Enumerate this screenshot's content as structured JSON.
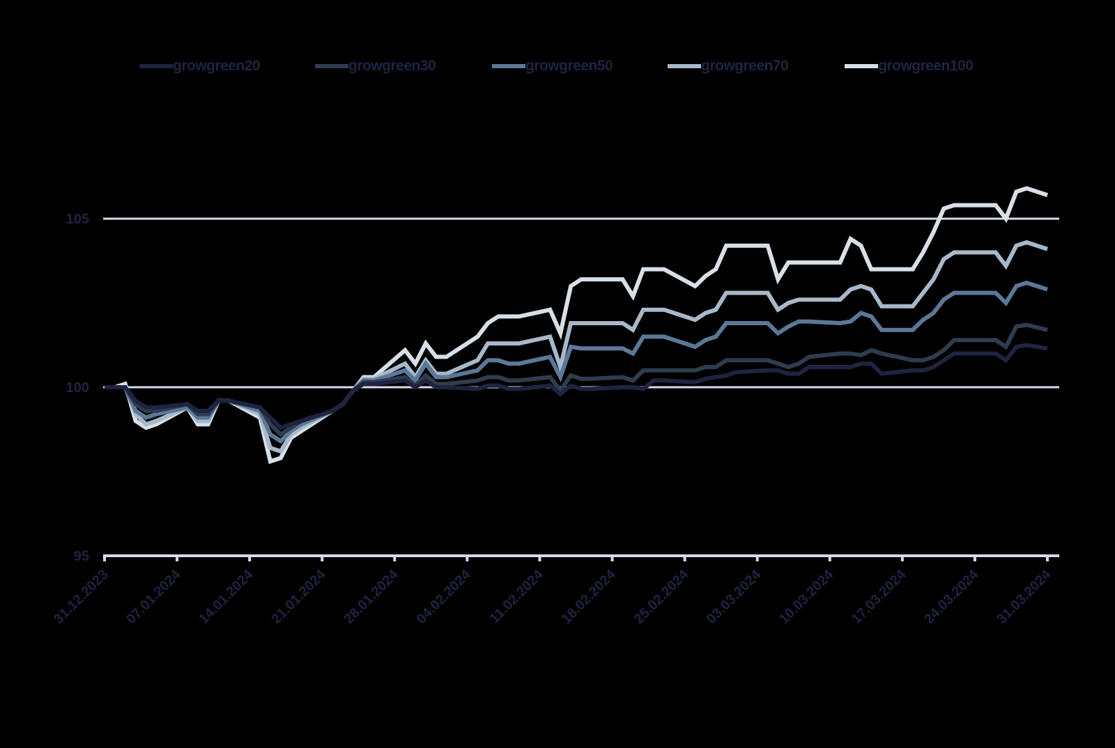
{
  "chart_data": {
    "type": "line",
    "title": "",
    "xlabel": "",
    "ylabel": "",
    "ylim": [
      95,
      107
    ],
    "yticks": [
      95,
      100,
      105
    ],
    "grid": {
      "y": true,
      "x": false,
      "color": "#d9d9ec"
    },
    "legend_position": "top",
    "x_tick_labels": [
      "31.12.2023",
      "07.01.2024",
      "14.01.2024",
      "21.01.2024",
      "28.01.2024",
      "04.02.2024",
      "11.02.2024",
      "18.02.2024",
      "25.02.2024",
      "03.03.2024",
      "10.03.2024",
      "17.03.2024",
      "24.03.2024",
      "31.03.2024"
    ],
    "x_day_offsets": [
      0,
      1,
      2,
      3,
      4,
      5,
      8,
      9,
      10,
      11,
      12,
      15,
      16,
      17,
      18,
      19,
      22,
      23,
      24,
      25,
      26,
      29,
      30,
      31,
      32,
      33,
      36,
      37,
      38,
      39,
      40,
      43,
      44,
      45,
      46,
      47,
      50,
      51,
      52,
      53,
      54,
      57,
      58,
      59,
      60,
      61,
      64,
      65,
      66,
      67,
      68,
      71,
      72,
      73,
      74,
      75,
      78,
      79,
      80,
      81,
      82,
      85,
      86,
      87,
      88,
      89,
      91
    ],
    "series": [
      {
        "name": "growgreen20",
        "color": "#1f2340",
        "values": [
          100,
          100,
          100,
          99.6,
          99.4,
          99.4,
          99.5,
          99.3,
          99.3,
          99.6,
          99.6,
          99.4,
          99.1,
          98.8,
          98.9,
          99.0,
          99.3,
          99.5,
          99.9,
          100.1,
          100.1,
          100.2,
          100.0,
          100.2,
          100.0,
          100.0,
          99.95,
          100.05,
          100.05,
          99.95,
          99.95,
          100.05,
          99.8,
          100.05,
          99.95,
          99.95,
          100.0,
          100.0,
          99.95,
          100.2,
          100.2,
          100.15,
          100.25,
          100.3,
          100.35,
          100.45,
          100.5,
          100.5,
          100.4,
          100.4,
          100.6,
          100.6,
          100.6,
          100.7,
          100.7,
          100.4,
          100.5,
          100.5,
          100.6,
          100.8,
          101.0,
          101.0,
          101.0,
          100.8,
          101.2,
          101.25,
          101.15
        ]
      },
      {
        "name": "growgreen30",
        "color": "#2e3d4e",
        "values": [
          100,
          100,
          100,
          99.5,
          99.3,
          99.3,
          99.5,
          99.2,
          99.2,
          99.6,
          99.6,
          99.4,
          98.9,
          98.6,
          98.8,
          99.0,
          99.3,
          99.5,
          99.9,
          100.15,
          100.15,
          100.3,
          100.05,
          100.35,
          100.1,
          100.1,
          100.2,
          100.3,
          100.3,
          100.2,
          100.2,
          100.3,
          99.9,
          100.35,
          100.25,
          100.25,
          100.3,
          100.2,
          100.5,
          100.5,
          100.5,
          100.5,
          100.6,
          100.6,
          100.8,
          100.8,
          100.8,
          100.7,
          100.6,
          100.7,
          100.9,
          101.0,
          101.0,
          100.95,
          101.1,
          101.0,
          100.8,
          100.8,
          100.9,
          101.1,
          101.4,
          101.4,
          101.4,
          101.2,
          101.8,
          101.85,
          101.7
        ]
      },
      {
        "name": "growgreen50",
        "color": "#5b7898",
        "values": [
          100,
          100,
          100,
          99.3,
          99.1,
          99.2,
          99.4,
          99.1,
          99.1,
          99.6,
          99.6,
          99.3,
          98.6,
          98.4,
          98.7,
          98.9,
          99.3,
          99.5,
          99.9,
          100.2,
          100.2,
          100.5,
          100.2,
          100.7,
          100.3,
          100.3,
          100.5,
          100.8,
          100.8,
          100.7,
          100.7,
          100.9,
          100.3,
          101.2,
          101.15,
          101.15,
          101.15,
          101.0,
          101.5,
          101.5,
          101.5,
          101.2,
          101.4,
          101.5,
          101.9,
          101.9,
          101.9,
          101.6,
          101.8,
          101.95,
          101.95,
          101.9,
          101.95,
          102.2,
          102.1,
          101.7,
          101.7,
          102.0,
          102.2,
          102.6,
          102.8,
          102.8,
          102.8,
          102.5,
          103.0,
          103.1,
          102.9
        ]
      },
      {
        "name": "growgreen70",
        "color": "#a7b8c9",
        "values": [
          100,
          100,
          100,
          99.2,
          98.9,
          99.0,
          99.4,
          99.0,
          99.0,
          99.6,
          99.6,
          99.2,
          98.2,
          98.1,
          98.6,
          98.8,
          99.3,
          99.5,
          99.9,
          100.25,
          100.25,
          100.7,
          100.3,
          100.8,
          100.4,
          100.4,
          100.8,
          101.3,
          101.3,
          101.3,
          101.3,
          101.5,
          100.6,
          101.9,
          101.9,
          101.9,
          101.9,
          101.7,
          102.3,
          102.3,
          102.3,
          102.0,
          102.2,
          102.3,
          102.8,
          102.8,
          102.8,
          102.3,
          102.5,
          102.6,
          102.6,
          102.6,
          102.9,
          103.0,
          102.9,
          102.4,
          102.4,
          102.8,
          103.2,
          103.8,
          104.0,
          104.0,
          104.0,
          103.6,
          104.2,
          104.3,
          104.1
        ]
      },
      {
        "name": "growgreen100",
        "color": "#d8dfe6",
        "values": [
          100,
          100,
          100.1,
          99.0,
          98.8,
          98.9,
          99.4,
          98.9,
          98.9,
          99.6,
          99.6,
          99.1,
          97.8,
          97.9,
          98.5,
          98.7,
          99.3,
          99.5,
          99.9,
          100.3,
          100.3,
          101.1,
          100.7,
          101.3,
          100.9,
          100.9,
          101.5,
          101.9,
          102.1,
          102.1,
          102.1,
          102.3,
          101.6,
          103.0,
          103.2,
          103.2,
          103.2,
          102.7,
          103.5,
          103.5,
          103.5,
          103.0,
          103.3,
          103.5,
          104.2,
          104.2,
          104.2,
          103.2,
          103.7,
          103.7,
          103.7,
          103.7,
          104.4,
          104.2,
          103.5,
          103.5,
          103.5,
          104.0,
          104.6,
          105.3,
          105.4,
          105.4,
          105.4,
          105.0,
          105.8,
          105.9,
          105.7
        ]
      }
    ]
  },
  "legend": {
    "items": [
      {
        "label": "growgreen20",
        "color": "#1f2340"
      },
      {
        "label": "growgreen30",
        "color": "#2e3d4e"
      },
      {
        "label": "growgreen50",
        "color": "#5b7898"
      },
      {
        "label": "growgreen70",
        "color": "#a7b8c9"
      },
      {
        "label": "growgreen100",
        "color": "#d8dfe6"
      }
    ]
  },
  "axis": {
    "y_labels": [
      "95",
      "100",
      "105"
    ],
    "line_color": "#d9d9ec",
    "label_color": "#1f2340"
  }
}
